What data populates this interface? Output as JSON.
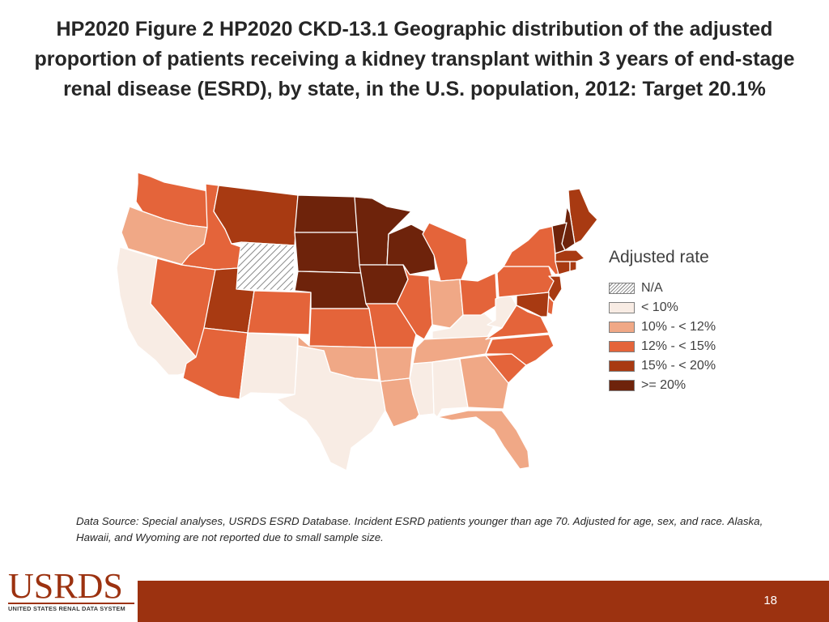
{
  "title": "HP2020 Figure 2 HP2020 CKD-13.1 Geographic distribution of the adjusted proportion of patients receiving a kidney transplant within 3 years of end-stage renal disease (ESRD), by state, in the U.S. population, 2012: Target 20.1%",
  "legend": {
    "title": "Adjusted rate",
    "items": [
      {
        "label": "N/A",
        "key": "na",
        "color": "hatch"
      },
      {
        "label": "< 10%",
        "key": "c1",
        "color": "#f8ece4"
      },
      {
        "label": "10% - < 12%",
        "key": "c2",
        "color": "#f0a886"
      },
      {
        "label": "12% - < 15%",
        "key": "c3",
        "color": "#e4643a"
      },
      {
        "label": "15% - < 20%",
        "key": "c4",
        "color": "#a83a12"
      },
      {
        "label": ">= 20%",
        "key": "c5",
        "color": "#6e230b"
      }
    ]
  },
  "state_classes": {
    "WA": "c3",
    "OR": "c2",
    "CA": "c1",
    "ID": "c3",
    "NV": "c3",
    "MT": "c4",
    "WY": "na",
    "UT": "c4",
    "AZ": "c3",
    "CO": "c3",
    "NM": "c1",
    "ND": "c5",
    "SD": "c5",
    "NE": "c5",
    "KS": "c3",
    "OK": "c2",
    "TX": "c1",
    "MN": "c5",
    "IA": "c5",
    "MO": "c3",
    "AR": "c2",
    "LA": "c2",
    "WI": "c5",
    "IL": "c3",
    "MS": "c1",
    "MI": "c3",
    "IN": "c2",
    "KY": "c1",
    "TN": "c2",
    "AL": "c1",
    "OH": "c3",
    "WV": "c1",
    "GA": "c2",
    "FL": "c2",
    "SC": "c3",
    "NC": "c3",
    "VA": "c3",
    "PA": "c3",
    "NY": "c3",
    "ME": "c4",
    "NH": "c5",
    "VT": "c5",
    "MA": "c4",
    "CT": "c4",
    "RI": "c4",
    "NJ": "c4",
    "DE": "c3",
    "MD": "c4"
  },
  "source": "Data Source: Special analyses, USRDS ESRD Database. Incident ESRD patients younger than age 70. Adjusted for age, sex, and race. Alaska, Hawaii, and Wyoming are not reported due to small sample size.",
  "logo": {
    "name": "USRDS",
    "subtitle": "UNITED STATES RENAL DATA SYSTEM"
  },
  "page_number": "18"
}
